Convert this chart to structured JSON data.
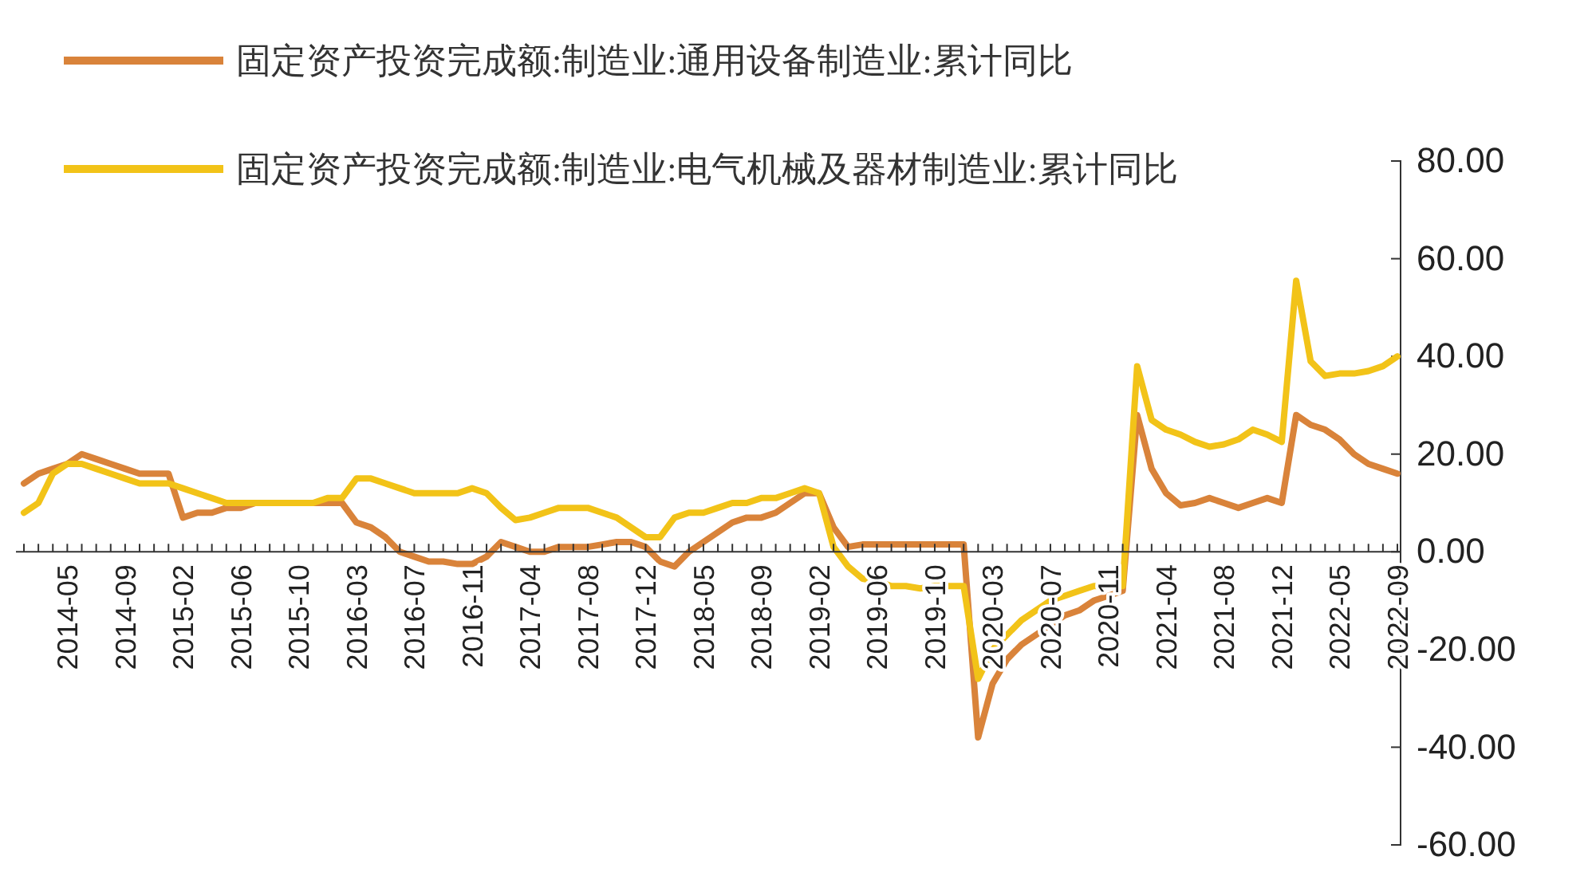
{
  "chart_data": {
    "type": "line",
    "categories": [
      null,
      null,
      null,
      "2014-05",
      null,
      null,
      null,
      "2014-09",
      null,
      null,
      null,
      "2015-02",
      null,
      null,
      null,
      "2015-06",
      null,
      null,
      null,
      "2015-10",
      null,
      null,
      null,
      "2016-03",
      null,
      null,
      null,
      "2016-07",
      null,
      null,
      null,
      "2016-11",
      null,
      null,
      null,
      "2017-04",
      null,
      null,
      null,
      "2017-08",
      null,
      null,
      null,
      "2017-12",
      null,
      null,
      null,
      "2018-05",
      null,
      null,
      null,
      "2018-09",
      null,
      null,
      null,
      "2019-02",
      null,
      null,
      null,
      "2019-06",
      null,
      null,
      null,
      "2019-10",
      null,
      null,
      null,
      "2020-03",
      null,
      null,
      null,
      "2020-07",
      null,
      null,
      null,
      "2020-11",
      null,
      null,
      null,
      "2021-04",
      null,
      null,
      null,
      "2021-08",
      null,
      null,
      null,
      "2021-12",
      null,
      null,
      null,
      "2022-05",
      null,
      null,
      null,
      "2022-09"
    ],
    "series": [
      {
        "name": "固定资产投资完成额:制造业:通用设备制造业:累计同比",
        "color": "#d9833a",
        "values": [
          14,
          16,
          17,
          18,
          20,
          19,
          18,
          17,
          16,
          16,
          16,
          7,
          8,
          8,
          9,
          9,
          10,
          10,
          10,
          10,
          10,
          10,
          10,
          6,
          5,
          3,
          0,
          -1,
          -2,
          -2,
          -2.5,
          -2.5,
          -1,
          2,
          1,
          0,
          0,
          1,
          1,
          1,
          1.5,
          2,
          2,
          1,
          -2,
          -3,
          0,
          2,
          4,
          6,
          7,
          7,
          8,
          10,
          12,
          12,
          5,
          1,
          1.5,
          1.5,
          1.5,
          1.5,
          1.5,
          1.5,
          1.5,
          1.5,
          -38,
          -27,
          -22,
          -19,
          -17,
          -15,
          -13,
          -12,
          -10,
          -9,
          -8,
          28,
          17,
          12,
          9.5,
          10,
          11,
          10,
          9,
          10,
          11,
          10,
          28,
          26,
          25,
          23,
          20,
          18,
          17,
          16
        ]
      },
      {
        "name": "固定资产投资完成额:制造业:电气机械及器材制造业:累计同比",
        "color": "#f2c318",
        "values": [
          8,
          10,
          16,
          18,
          18,
          17,
          16,
          15,
          14,
          14,
          14,
          13,
          12,
          11,
          10,
          10,
          10,
          10,
          10,
          10,
          10,
          11,
          11,
          15,
          15,
          14,
          13,
          12,
          12,
          12,
          12,
          13,
          12,
          9,
          6.5,
          7,
          8,
          9,
          9,
          9,
          8,
          7,
          5,
          3,
          3,
          7,
          8,
          8,
          9,
          10,
          10,
          11,
          11,
          12,
          13,
          12,
          1,
          -3,
          -5.5,
          -6,
          -7,
          -7,
          -7.5,
          -7,
          -7,
          -7,
          -26,
          -20,
          -17,
          -14,
          -12,
          -10,
          -9,
          -8,
          -7,
          -7,
          -7,
          38,
          27,
          25,
          24,
          22.5,
          21.5,
          22,
          23,
          25,
          24,
          22.5,
          55.5,
          39,
          36,
          36.5,
          36.5,
          37,
          38,
          40
        ]
      }
    ],
    "ylim": [
      -60,
      80
    ],
    "yticks": [
      {
        "value": 80,
        "label": "80.00"
      },
      {
        "value": 60,
        "label": "60.00"
      },
      {
        "value": 40,
        "label": "40.00"
      },
      {
        "value": 20,
        "label": "20.00"
      },
      {
        "value": 0,
        "label": "0.00"
      },
      {
        "value": -20,
        "label": "-20.00"
      },
      {
        "value": -40,
        "label": "-40.00"
      },
      {
        "value": -60,
        "label": "-60.00"
      }
    ],
    "legend": "top",
    "grid": false,
    "marker": "none",
    "line_style": "solid"
  }
}
